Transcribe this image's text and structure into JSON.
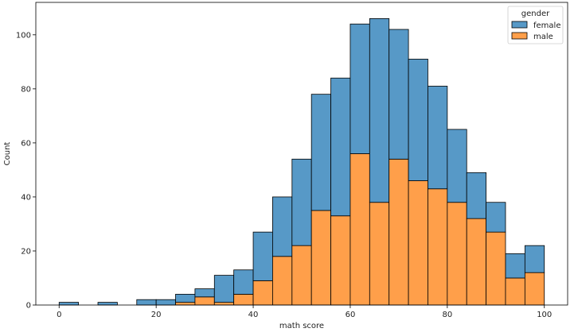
{
  "chart_data": {
    "type": "bar",
    "stacked": true,
    "bin_width": 4,
    "bin_starts": [
      0,
      4,
      8,
      12,
      16,
      20,
      24,
      28,
      32,
      36,
      40,
      44,
      48,
      52,
      56,
      60,
      64,
      68,
      72,
      76,
      80,
      84,
      88,
      92,
      96
    ],
    "series": [
      {
        "name": "male",
        "color": "#ff9f4a",
        "values": [
          0,
          0,
          0,
          0,
          0,
          0,
          1,
          3,
          1,
          4,
          9,
          18,
          22,
          35,
          33,
          56,
          38,
          54,
          46,
          43,
          38,
          32,
          27,
          10,
          12
        ]
      },
      {
        "name": "female",
        "color": "#5799c7",
        "values": [
          1,
          0,
          1,
          0,
          2,
          2,
          3,
          3,
          10,
          9,
          18,
          22,
          32,
          43,
          51,
          48,
          68,
          48,
          45,
          38,
          27,
          17,
          11,
          9,
          10
        ]
      }
    ],
    "title": "",
    "xlabel": "math score",
    "ylabel": "Count",
    "xlim": [
      -4.8,
      104.8
    ],
    "ylim": [
      0,
      112
    ],
    "xticks": [
      0,
      20,
      40,
      60,
      80,
      100
    ],
    "yticks": [
      0,
      20,
      40,
      60,
      80,
      100
    ],
    "grid": false,
    "legend": {
      "title": "gender",
      "placement": "top-right",
      "entries": [
        {
          "label": "female",
          "color": "#5799c7"
        },
        {
          "label": "male",
          "color": "#ff9f4a"
        }
      ]
    }
  }
}
